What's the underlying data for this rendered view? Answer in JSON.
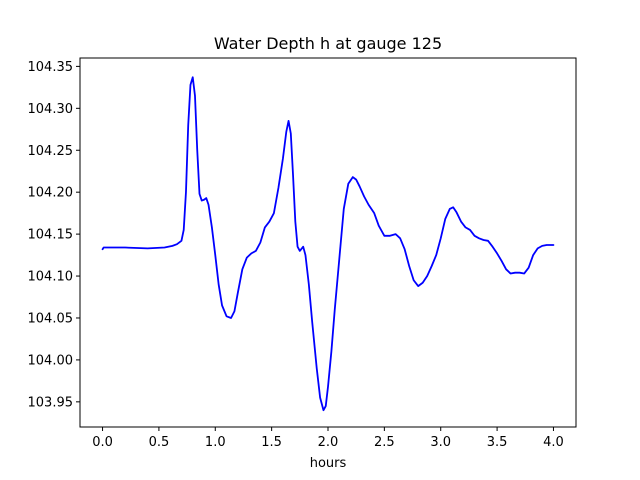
{
  "chart_data": {
    "type": "line",
    "title": "Water Depth h at gauge 125",
    "xlabel": "hours",
    "ylabel": "",
    "xlim": [
      -0.2,
      4.2
    ],
    "ylim": [
      103.92,
      104.36
    ],
    "xticks": [
      0.0,
      0.5,
      1.0,
      1.5,
      2.0,
      2.5,
      3.0,
      3.5,
      4.0
    ],
    "xtick_labels": [
      "0.0",
      "0.5",
      "1.0",
      "1.5",
      "2.0",
      "2.5",
      "3.0",
      "3.5",
      "4.0"
    ],
    "yticks": [
      103.95,
      104.0,
      104.05,
      104.1,
      104.15,
      104.2,
      104.25,
      104.3,
      104.35
    ],
    "ytick_labels": [
      "103.95",
      "104.00",
      "104.05",
      "104.10",
      "104.15",
      "104.20",
      "104.25",
      "104.30",
      "104.35"
    ],
    "grid": false,
    "series": [
      {
        "color": "#0000ff",
        "x": [
          0.0,
          0.01,
          0.05,
          0.2,
          0.4,
          0.55,
          0.62,
          0.66,
          0.7,
          0.72,
          0.74,
          0.76,
          0.78,
          0.8,
          0.82,
          0.84,
          0.86,
          0.88,
          0.9,
          0.92,
          0.94,
          0.97,
          1.0,
          1.03,
          1.06,
          1.1,
          1.14,
          1.17,
          1.2,
          1.24,
          1.28,
          1.32,
          1.36,
          1.4,
          1.44,
          1.48,
          1.52,
          1.56,
          1.6,
          1.63,
          1.65,
          1.67,
          1.69,
          1.71,
          1.73,
          1.75,
          1.78,
          1.8,
          1.83,
          1.86,
          1.9,
          1.93,
          1.96,
          1.98,
          2.0,
          2.03,
          2.06,
          2.1,
          2.14,
          2.18,
          2.22,
          2.25,
          2.28,
          2.32,
          2.36,
          2.41,
          2.45,
          2.5,
          2.55,
          2.6,
          2.64,
          2.68,
          2.72,
          2.76,
          2.8,
          2.84,
          2.88,
          2.92,
          2.96,
          3.0,
          3.04,
          3.08,
          3.11,
          3.14,
          3.18,
          3.22,
          3.26,
          3.3,
          3.34,
          3.38,
          3.42,
          3.46,
          3.5,
          3.54,
          3.58,
          3.62,
          3.66,
          3.7,
          3.74,
          3.78,
          3.82,
          3.86,
          3.9,
          3.94,
          3.97,
          4.0
        ],
        "y": [
          104.132,
          104.134,
          104.134,
          104.134,
          104.133,
          104.134,
          104.136,
          104.138,
          104.142,
          104.155,
          104.2,
          104.28,
          104.328,
          104.337,
          104.315,
          104.25,
          104.198,
          104.19,
          104.191,
          104.193,
          104.185,
          104.158,
          104.125,
          104.09,
          104.065,
          104.052,
          104.05,
          104.058,
          104.08,
          104.108,
          104.122,
          104.127,
          104.13,
          104.14,
          104.158,
          104.165,
          104.175,
          104.205,
          104.24,
          104.272,
          104.285,
          104.27,
          104.22,
          104.165,
          104.135,
          104.13,
          104.135,
          104.125,
          104.09,
          104.045,
          103.99,
          103.955,
          103.94,
          103.945,
          103.968,
          104.01,
          104.06,
          104.12,
          104.18,
          104.21,
          104.218,
          104.215,
          104.207,
          104.195,
          104.185,
          104.175,
          104.16,
          104.148,
          104.148,
          104.15,
          104.145,
          104.132,
          104.112,
          104.095,
          104.088,
          104.092,
          104.1,
          104.112,
          104.125,
          104.145,
          104.168,
          104.18,
          104.182,
          104.176,
          104.165,
          104.158,
          104.155,
          104.148,
          104.145,
          104.143,
          104.142,
          104.135,
          104.127,
          104.118,
          104.108,
          104.103,
          104.104,
          104.104,
          104.103,
          104.11,
          104.125,
          104.133,
          104.136,
          104.137,
          104.137,
          104.137
        ]
      }
    ]
  }
}
